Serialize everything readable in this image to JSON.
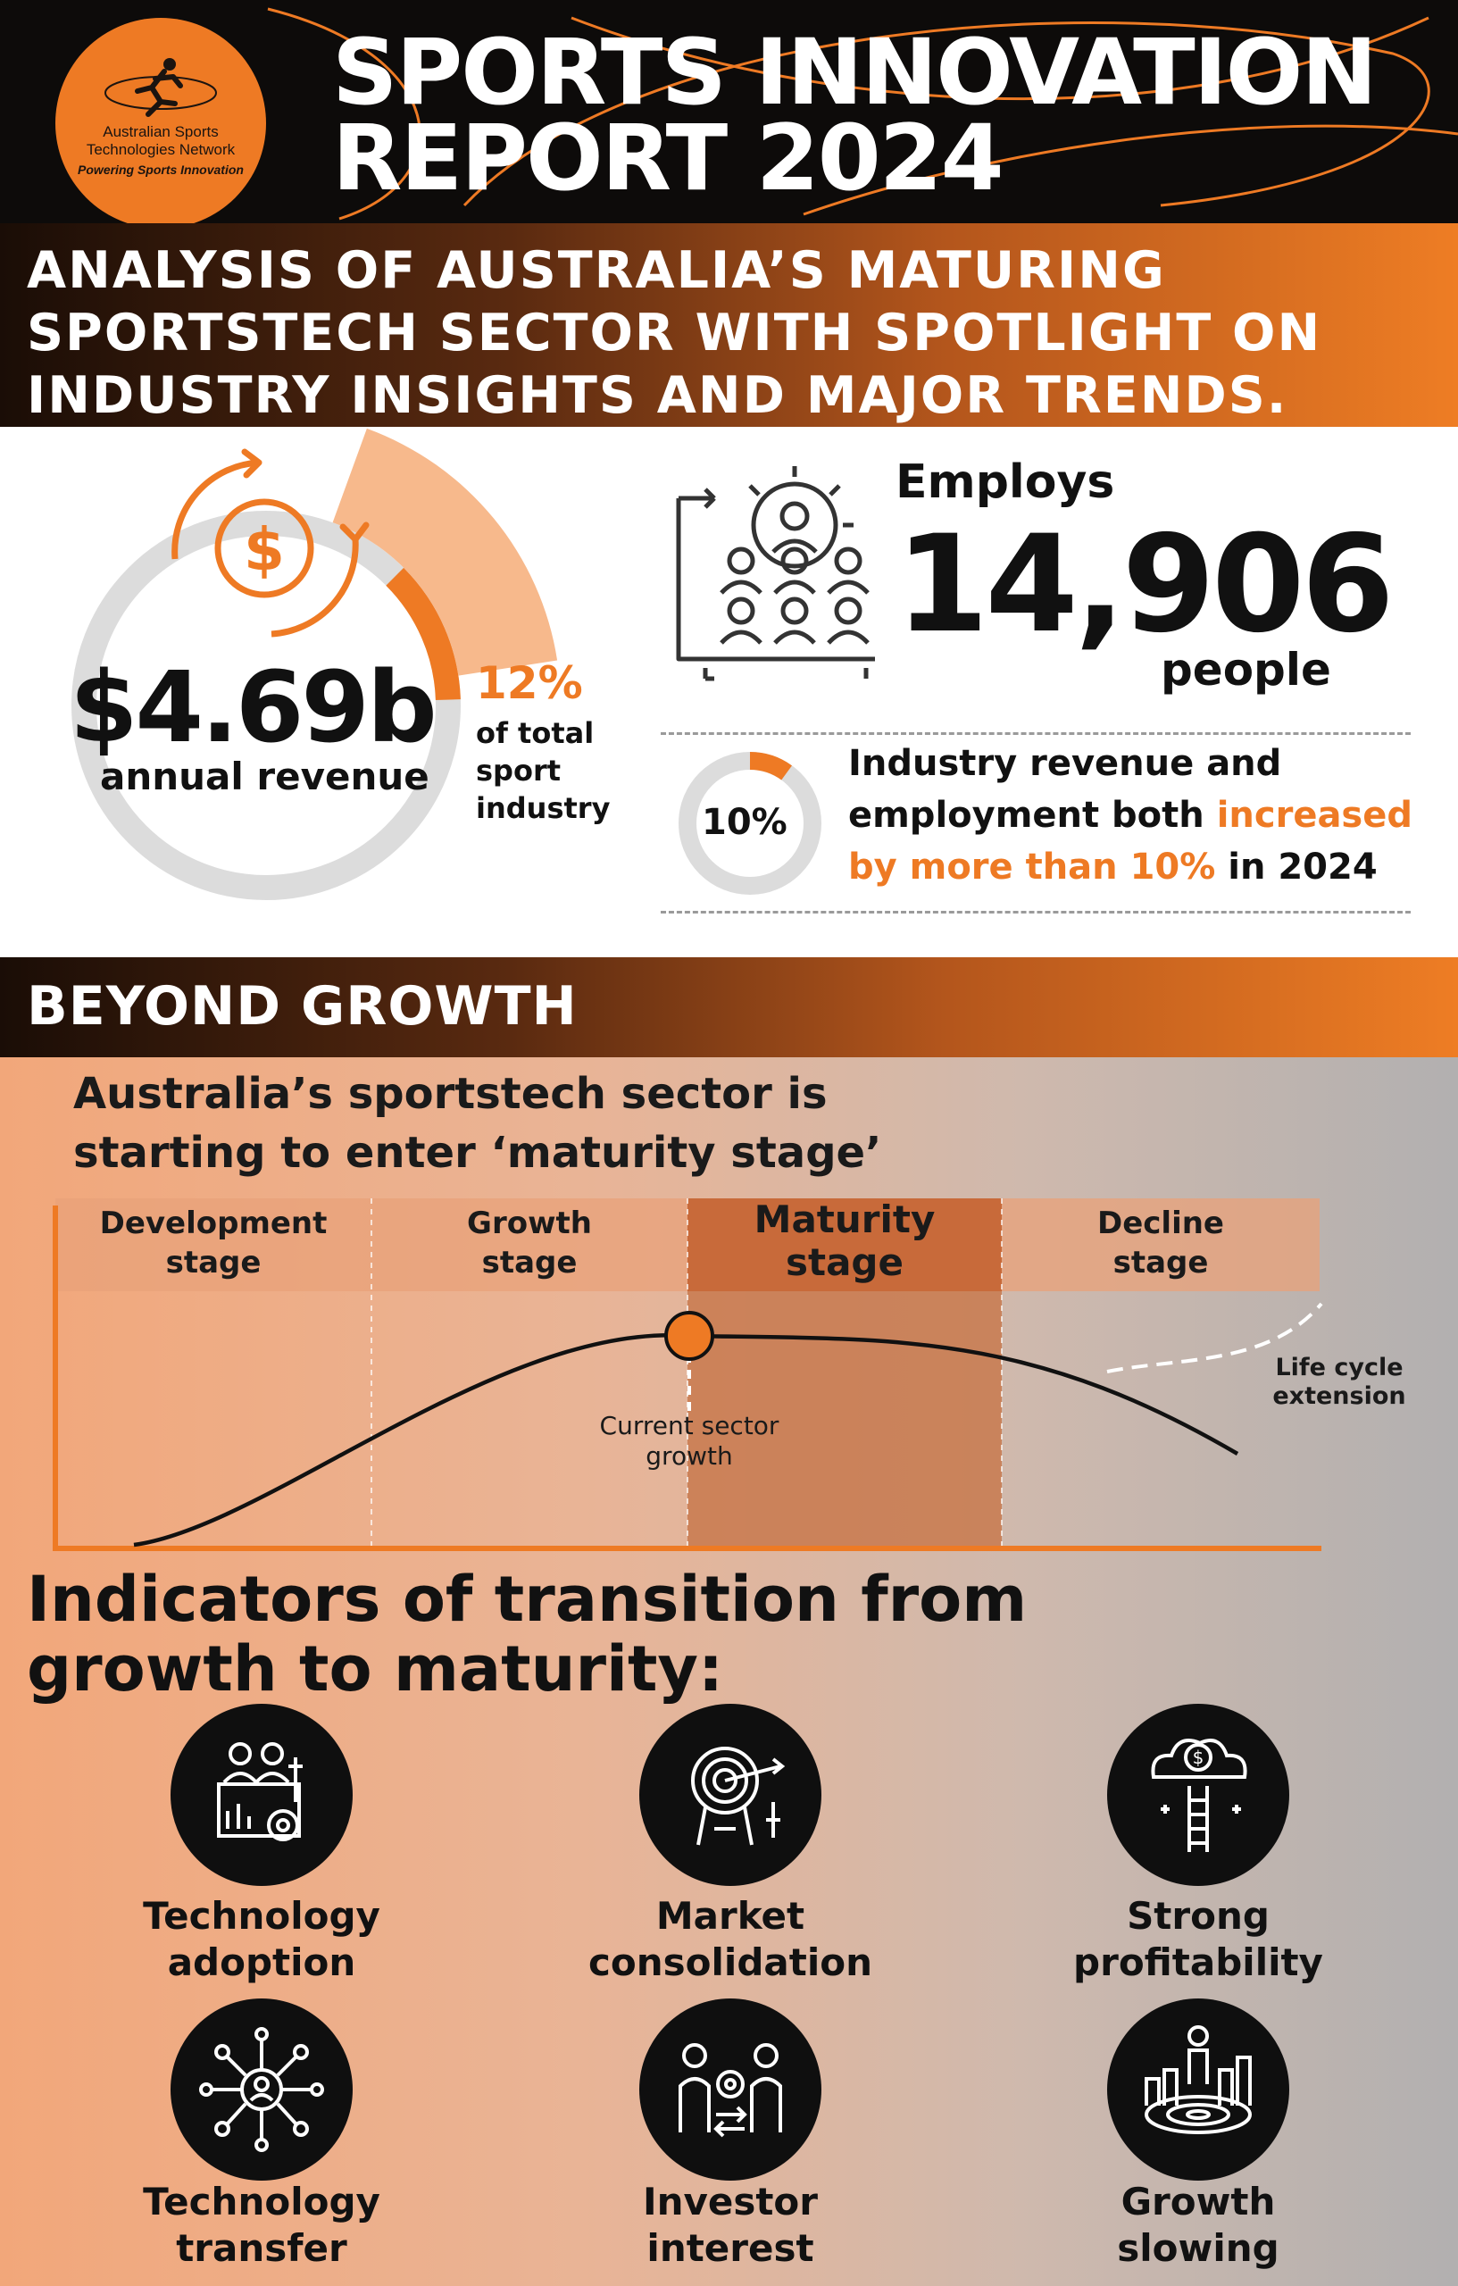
{
  "header": {
    "title_line1": "SPORTS INNOVATION",
    "title_line2": "REPORT 2024",
    "logo": {
      "name_line1": "Australian Sports",
      "name_line2": "Technologies Network",
      "tagline": "Powering Sports Innovation",
      "icon": "runner-icon"
    }
  },
  "subtitle": {
    "line1": "ANALYSIS OF AUSTRALIA’S MATURING",
    "line2": "SPORTSTECH SECTOR WITH SPOTLIGHT ON",
    "line3": "INDUSTRY INSIGHTS AND MAJOR TRENDS."
  },
  "stats": {
    "revenue": {
      "value": "$4.69b",
      "label": "annual revenue",
      "icon": "dollar-cycle-icon",
      "share_percent": "12%",
      "share_line1": "of total",
      "share_line2": "sport",
      "share_line3": "industry",
      "share_fraction": 0.12
    },
    "employment": {
      "label": "Employs",
      "value": "14,906",
      "unit": "people",
      "icon": "workforce-gear-icon"
    },
    "growth": {
      "percent": "10%",
      "fraction": 0.1,
      "text_before": "Industry revenue and employment both ",
      "text_highlight": "increased by more than 10%",
      "text_after": " in 2024"
    }
  },
  "beyond": {
    "title": "BEYOND GROWTH",
    "heading_line1": "Australia’s sportstech sector is",
    "heading_line2": "starting to enter ‘maturity stage’",
    "stages": [
      {
        "line1": "Development",
        "line2": "stage"
      },
      {
        "line1": "Growth",
        "line2": "stage"
      },
      {
        "line1": "Maturity",
        "line2": "stage"
      },
      {
        "line1": "Decline",
        "line2": "stage"
      }
    ],
    "current_marker_line1": "Current sector",
    "current_marker_line2": "growth",
    "extension_line1": "Life cycle",
    "extension_line2": "extension"
  },
  "indicators": {
    "heading_line1": "Indicators of transition from",
    "heading_line2": "growth to maturity:",
    "items": [
      {
        "line1": "Technology",
        "line2": "adoption",
        "icon": "team-gear-icon"
      },
      {
        "line1": "Market",
        "line2": "consolidation",
        "icon": "target-arrow-icon"
      },
      {
        "line1": "Strong",
        "line2": "profitability",
        "icon": "money-cloud-ladder-icon"
      },
      {
        "line1": "Technology",
        "line2": "transfer",
        "icon": "network-people-icon"
      },
      {
        "line1": "Investor",
        "line2": "interest",
        "icon": "investors-exchange-icon"
      },
      {
        "line1": "Growth",
        "line2": "slowing",
        "icon": "person-on-chart-icon"
      }
    ]
  },
  "colors": {
    "accent": "#ee7a24",
    "dark": "#0d0b0a",
    "maturity_band": "#c8794e"
  }
}
